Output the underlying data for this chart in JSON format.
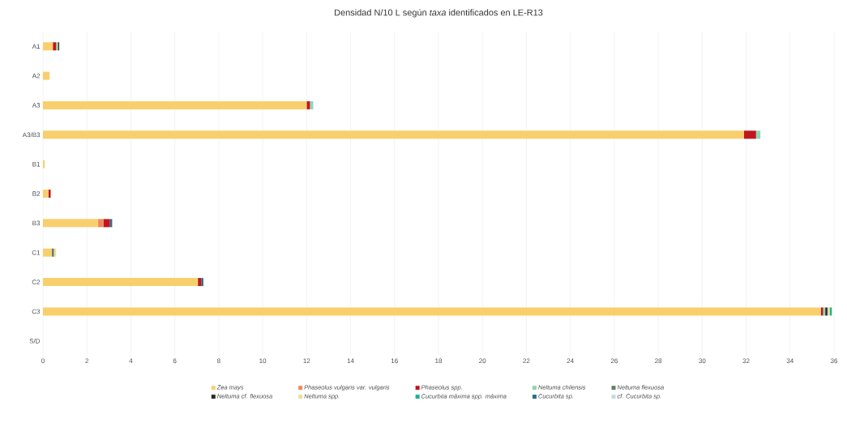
{
  "chart_data": {
    "type": "bar",
    "orientation": "horizontal",
    "stacked": true,
    "title": "Densidad N/10 L según *taxa* identificados en LE-R13",
    "categories": [
      "A1",
      "A2",
      "A3",
      "A3/B3",
      "B1",
      "B2",
      "B3",
      "C1",
      "C2",
      "C3",
      "S/D"
    ],
    "series": [
      {
        "name": "Zea mays",
        "color": "#f9cf6d",
        "values": [
          0.45,
          0.3,
          12.0,
          31.9,
          0.08,
          0.25,
          2.5,
          0.4,
          7.05,
          35.4,
          0
        ]
      },
      {
        "name": "Phaseolus vulgaris var. vulgaris",
        "color": "#ef8a5a",
        "values": [
          0,
          0,
          0,
          0,
          0,
          0,
          0.25,
          0,
          0,
          0,
          0
        ]
      },
      {
        "name": "Phaseolus spp.",
        "color": "#c0161e",
        "values": [
          0.15,
          0,
          0.15,
          0.55,
          0,
          0.1,
          0.3,
          0,
          0.15,
          0.1,
          0
        ]
      },
      {
        "name": "Neltuma chilensis",
        "color": "#8fd6b4",
        "values": [
          0.08,
          0,
          0.15,
          0.2,
          0,
          0,
          0,
          0,
          0,
          0.1,
          0
        ]
      },
      {
        "name": "Neltuma flexuosa",
        "color": "#6b7a6b",
        "values": [
          0,
          0,
          0,
          0,
          0,
          0,
          0,
          0.1,
          0,
          0,
          0
        ]
      },
      {
        "name": "Neltuma cf. flexuosa",
        "color": "#2b2b2b",
        "values": [
          0.06,
          0,
          0,
          0,
          0,
          0,
          0,
          0,
          0,
          0.1,
          0
        ]
      },
      {
        "name": "Neltuma spp.",
        "color": "#e8e0a0",
        "values": [
          0,
          0,
          0,
          0,
          0,
          0,
          0,
          0.1,
          0,
          0.1,
          0
        ]
      },
      {
        "name": "Cucurbita máxima spp. máxima",
        "color": "#20b28a",
        "values": [
          0,
          0,
          0,
          0,
          0,
          0,
          0,
          0,
          0,
          0.1,
          0
        ]
      },
      {
        "name": "Cucurbita sp.",
        "color": "#2a6f8a",
        "values": [
          0,
          0,
          0,
          0,
          0,
          0,
          0.1,
          0,
          0.1,
          0,
          0
        ]
      },
      {
        "name": "cf. Cucurbita sp.",
        "color": "#c8d8e8",
        "values": [
          0,
          0,
          0,
          0,
          0,
          0,
          0,
          0,
          0,
          0,
          0
        ]
      }
    ],
    "xlim": [
      0,
      36
    ],
    "xticks": [
      0,
      2,
      4,
      6,
      8,
      10,
      12,
      14,
      16,
      18,
      20,
      22,
      24,
      26,
      28,
      30,
      32,
      34,
      36
    ],
    "grid": "x",
    "legend": "bottom"
  }
}
